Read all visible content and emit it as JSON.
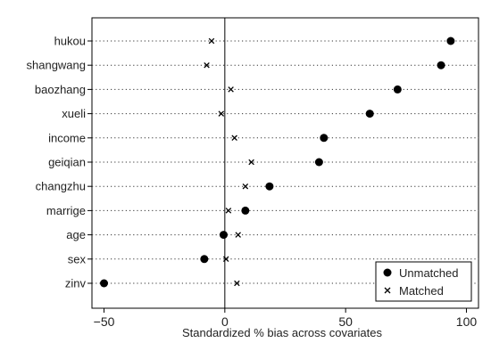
{
  "chart_data": {
    "type": "scatter",
    "title": "",
    "xlabel": "Standardized % bias across covariates",
    "ylabel": "",
    "xlim": [
      -55,
      105
    ],
    "x_ticks": [
      -50,
      0,
      50,
      100
    ],
    "x_tick_labels": [
      "−50",
      "0",
      "50",
      "100"
    ],
    "reference_line_x": 0,
    "grid": "horizontal dotted",
    "legend_position": "bottom-right",
    "categories": [
      "hukou",
      "shangwang",
      "baozhang",
      "xueli",
      "income",
      "geiqian",
      "changzhu",
      "marrige",
      "age",
      "sex",
      "zinv"
    ],
    "series": [
      {
        "name": "Unmatched",
        "marker": "filled-circle",
        "values": [
          93.5,
          89.5,
          71.5,
          60,
          41,
          39,
          18.5,
          8.5,
          -0.5,
          -8.5,
          -50
        ]
      },
      {
        "name": "Matched",
        "marker": "x",
        "values": [
          -5.5,
          -7.5,
          2.5,
          -1.5,
          4,
          11,
          8.5,
          1.5,
          5.5,
          0.5,
          5
        ]
      }
    ]
  }
}
